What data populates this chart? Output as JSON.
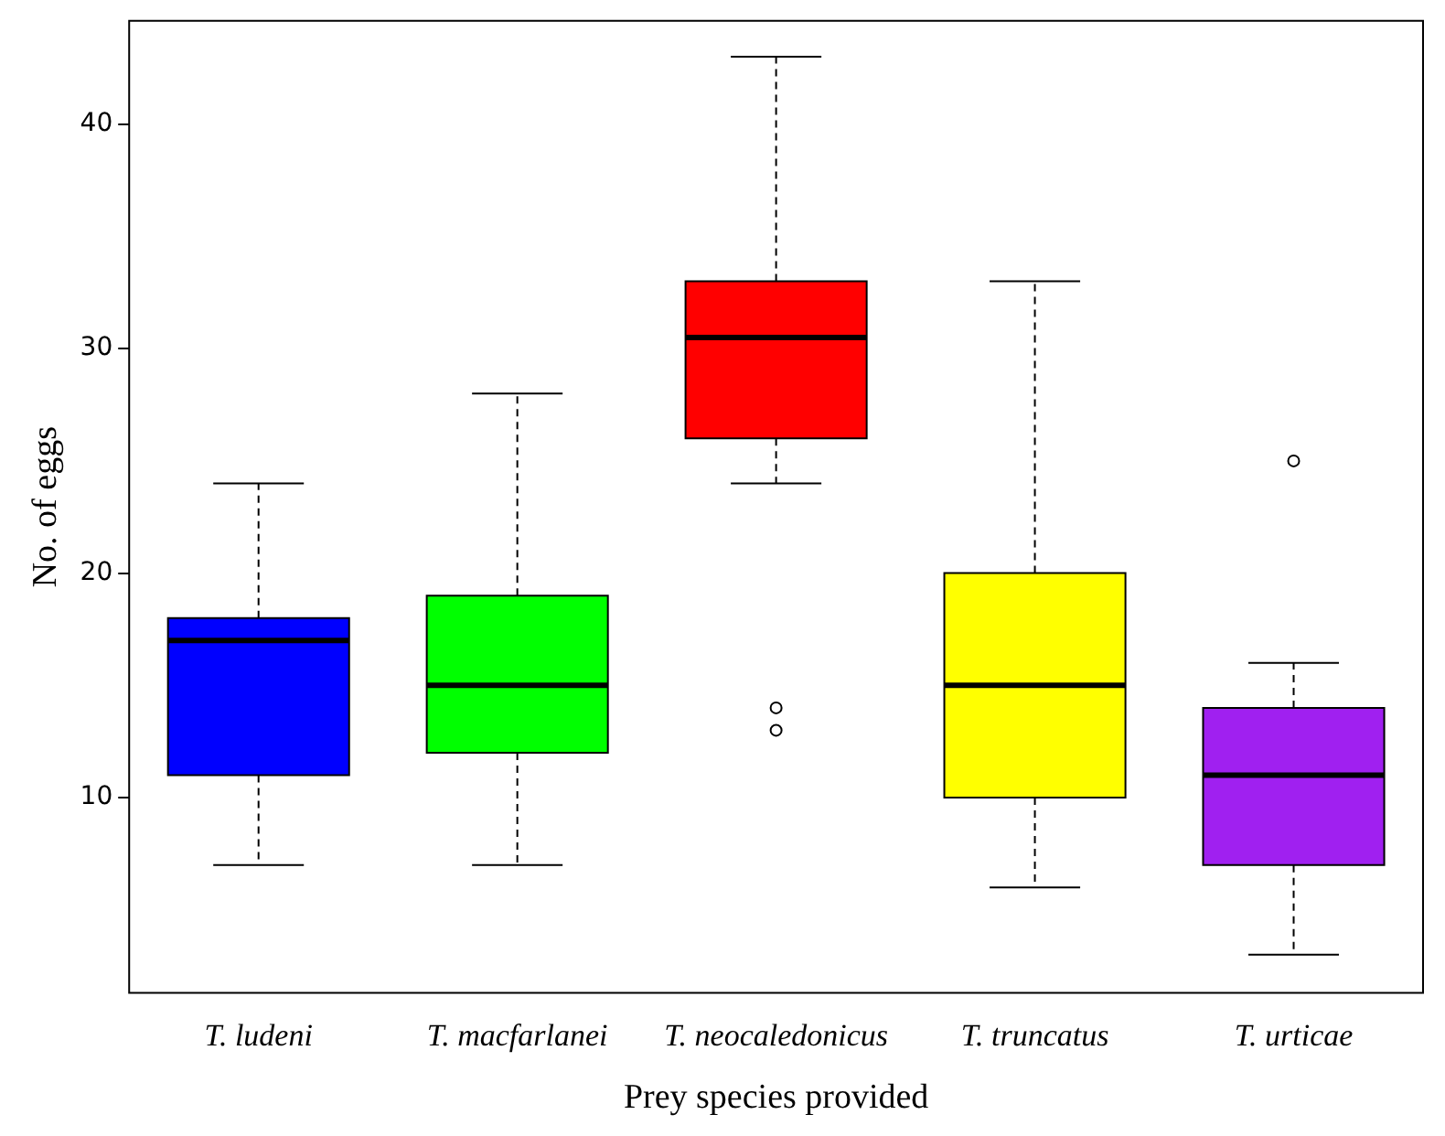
{
  "chart_data": {
    "type": "box",
    "xlabel": "Prey species provided",
    "ylabel": "No. of eggs",
    "categories": [
      "T. ludeni",
      "T. macfarlanei",
      "T. neocaledonicus",
      "T. truncatus",
      "T. urticae"
    ],
    "colors": [
      "#0000ff",
      "#00ff00",
      "#ff0000",
      "#ffff00",
      "#a020f0"
    ],
    "boxes": [
      {
        "low": 7,
        "q1": 11,
        "median": 17,
        "q3": 18,
        "high": 24
      },
      {
        "low": 7,
        "q1": 12,
        "median": 15,
        "q3": 19,
        "high": 28
      },
      {
        "low": 24,
        "q1": 26,
        "median": 30.5,
        "q3": 33,
        "high": 43,
        "outliers": [
          14,
          13
        ]
      },
      {
        "low": 6,
        "q1": 10,
        "median": 15,
        "q3": 20,
        "high": 33
      },
      {
        "low": 3,
        "q1": 7,
        "median": 11,
        "q3": 14,
        "high": 16,
        "outliers": [
          25
        ]
      }
    ],
    "ylim": [
      1.3,
      44.6
    ],
    "yticks": [
      10,
      20,
      30,
      40
    ],
    "grid": false,
    "legend": false
  }
}
